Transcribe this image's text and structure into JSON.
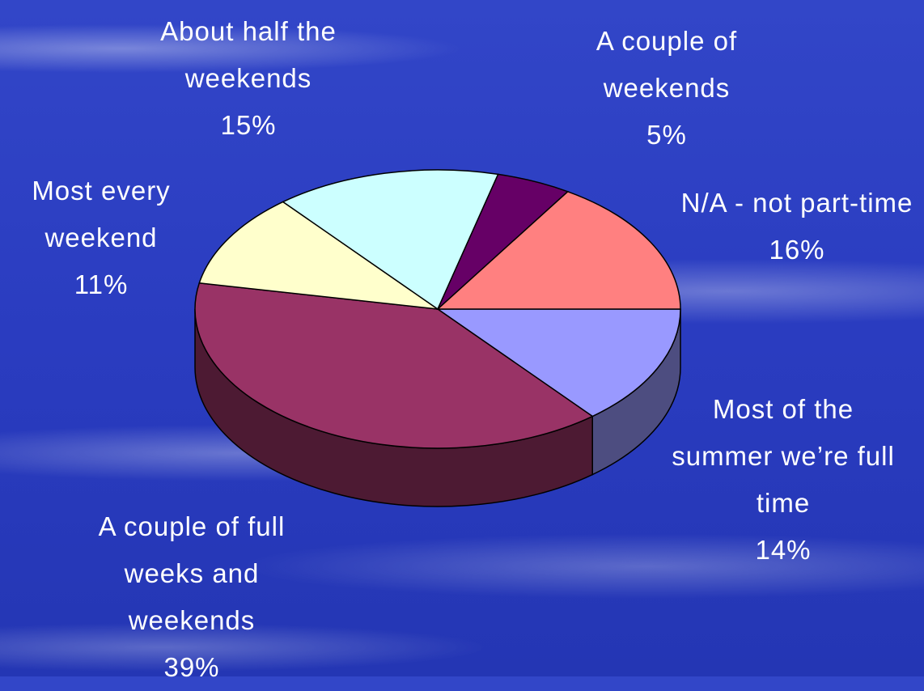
{
  "chart_data": {
    "type": "pie",
    "categories": [
      "Most of the summer we’re full time",
      "A couple of full weeks and weekends",
      "Most every weekend",
      "About half the weekends",
      "A couple of weekends",
      "N/A - not part-time"
    ],
    "values": [
      14,
      39,
      11,
      15,
      5,
      16
    ],
    "value_labels": [
      "14%",
      "39%",
      "11%",
      "15%",
      "5%",
      "16%"
    ],
    "colors": [
      "#9999ff",
      "#993366",
      "#ffffcc",
      "#ccffff",
      "#660066",
      "#ff8080"
    ]
  }
}
